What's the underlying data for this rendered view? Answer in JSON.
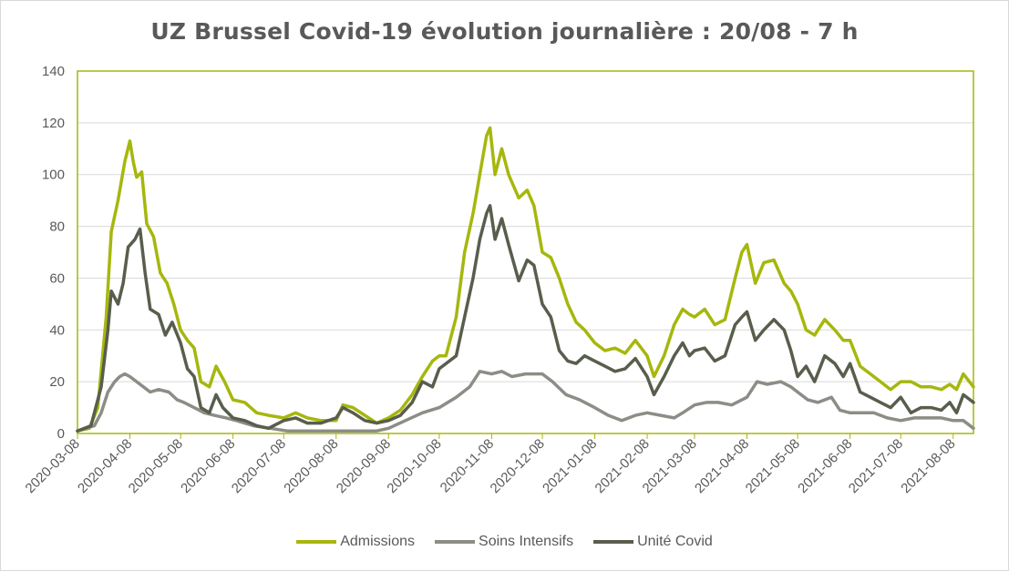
{
  "chart_data": {
    "type": "line",
    "title": "UZ Brussel Covid-19 évolution journalière : 20/08 - 7 h",
    "xlabel": "",
    "ylabel": "",
    "ylim": [
      0,
      140
    ],
    "yticks": [
      0,
      20,
      40,
      60,
      80,
      100,
      120,
      140
    ],
    "x_range": [
      "2020-03-08",
      "2021-08-20"
    ],
    "xticks": [
      "2020-03-08",
      "2020-04-08",
      "2020-05-08",
      "2020-06-08",
      "2020-07-08",
      "2020-08-08",
      "2020-09-08",
      "2020-10-08",
      "2020-11-08",
      "2020-12-08",
      "2021-01-08",
      "2021-02-08",
      "2021-03-08",
      "2021-04-08",
      "2021-05-08",
      "2021-06-08",
      "2021-07-08",
      "2021-08-08"
    ],
    "grid": true,
    "legend_position": "bottom",
    "series": [
      {
        "name": "Admissions",
        "color": "#a6b70d",
        "points": [
          [
            "2020-03-08",
            1
          ],
          [
            "2020-03-15",
            2
          ],
          [
            "2020-03-20",
            10
          ],
          [
            "2020-03-25",
            45
          ],
          [
            "2020-03-28",
            78
          ],
          [
            "2020-04-01",
            90
          ],
          [
            "2020-04-05",
            105
          ],
          [
            "2020-04-08",
            113
          ],
          [
            "2020-04-10",
            105
          ],
          [
            "2020-04-12",
            99
          ],
          [
            "2020-04-15",
            101
          ],
          [
            "2020-04-18",
            81
          ],
          [
            "2020-04-22",
            76
          ],
          [
            "2020-04-26",
            62
          ],
          [
            "2020-04-30",
            58
          ],
          [
            "2020-05-04",
            50
          ],
          [
            "2020-05-08",
            40
          ],
          [
            "2020-05-12",
            36
          ],
          [
            "2020-05-16",
            33
          ],
          [
            "2020-05-20",
            20
          ],
          [
            "2020-05-25",
            18
          ],
          [
            "2020-05-29",
            26
          ],
          [
            "2020-06-03",
            20
          ],
          [
            "2020-06-08",
            13
          ],
          [
            "2020-06-15",
            12
          ],
          [
            "2020-06-22",
            8
          ],
          [
            "2020-06-29",
            7
          ],
          [
            "2020-07-08",
            6
          ],
          [
            "2020-07-15",
            8
          ],
          [
            "2020-07-22",
            6
          ],
          [
            "2020-07-30",
            5
          ],
          [
            "2020-08-08",
            5
          ],
          [
            "2020-08-12",
            11
          ],
          [
            "2020-08-18",
            10
          ],
          [
            "2020-08-25",
            7
          ],
          [
            "2020-09-01",
            4
          ],
          [
            "2020-09-08",
            6
          ],
          [
            "2020-09-15",
            9
          ],
          [
            "2020-09-22",
            15
          ],
          [
            "2020-09-28",
            22
          ],
          [
            "2020-10-04",
            28
          ],
          [
            "2020-10-08",
            30
          ],
          [
            "2020-10-12",
            30
          ],
          [
            "2020-10-18",
            45
          ],
          [
            "2020-10-23",
            70
          ],
          [
            "2020-10-28",
            85
          ],
          [
            "2020-11-01",
            100
          ],
          [
            "2020-11-05",
            115
          ],
          [
            "2020-11-07",
            118
          ],
          [
            "2020-11-10",
            100
          ],
          [
            "2020-11-14",
            110
          ],
          [
            "2020-11-18",
            100
          ],
          [
            "2020-11-24",
            91
          ],
          [
            "2020-11-29",
            94
          ],
          [
            "2020-12-03",
            88
          ],
          [
            "2020-12-08",
            70
          ],
          [
            "2020-12-13",
            68
          ],
          [
            "2020-12-18",
            60
          ],
          [
            "2020-12-23",
            50
          ],
          [
            "2020-12-28",
            43
          ],
          [
            "2021-01-02",
            40
          ],
          [
            "2021-01-08",
            35
          ],
          [
            "2021-01-14",
            32
          ],
          [
            "2021-01-20",
            33
          ],
          [
            "2021-01-26",
            31
          ],
          [
            "2021-02-01",
            36
          ],
          [
            "2021-02-08",
            30
          ],
          [
            "2021-02-12",
            22
          ],
          [
            "2021-02-18",
            30
          ],
          [
            "2021-02-24",
            42
          ],
          [
            "2021-03-01",
            48
          ],
          [
            "2021-03-05",
            46
          ],
          [
            "2021-03-08",
            45
          ],
          [
            "2021-03-14",
            48
          ],
          [
            "2021-03-20",
            42
          ],
          [
            "2021-03-26",
            44
          ],
          [
            "2021-04-01",
            60
          ],
          [
            "2021-04-05",
            70
          ],
          [
            "2021-04-08",
            73
          ],
          [
            "2021-04-13",
            58
          ],
          [
            "2021-04-18",
            66
          ],
          [
            "2021-04-24",
            67
          ],
          [
            "2021-04-30",
            58
          ],
          [
            "2021-05-04",
            55
          ],
          [
            "2021-05-08",
            50
          ],
          [
            "2021-05-13",
            40
          ],
          [
            "2021-05-18",
            38
          ],
          [
            "2021-05-24",
            44
          ],
          [
            "2021-05-30",
            40
          ],
          [
            "2021-06-04",
            36
          ],
          [
            "2021-06-08",
            36
          ],
          [
            "2021-06-14",
            26
          ],
          [
            "2021-06-20",
            23
          ],
          [
            "2021-06-26",
            20
          ],
          [
            "2021-07-02",
            17
          ],
          [
            "2021-07-08",
            20
          ],
          [
            "2021-07-14",
            20
          ],
          [
            "2021-07-20",
            18
          ],
          [
            "2021-07-26",
            18
          ],
          [
            "2021-08-01",
            17
          ],
          [
            "2021-08-06",
            19
          ],
          [
            "2021-08-10",
            17
          ],
          [
            "2021-08-14",
            23
          ],
          [
            "2021-08-20",
            18
          ]
        ]
      },
      {
        "name": "Soins Intensifs",
        "color": "#8c8d86",
        "points": [
          [
            "2020-03-08",
            1
          ],
          [
            "2020-03-18",
            3
          ],
          [
            "2020-03-22",
            8
          ],
          [
            "2020-03-26",
            16
          ],
          [
            "2020-03-30",
            20
          ],
          [
            "2020-04-02",
            22
          ],
          [
            "2020-04-05",
            23
          ],
          [
            "2020-04-08",
            22
          ],
          [
            "2020-04-12",
            20
          ],
          [
            "2020-04-16",
            18
          ],
          [
            "2020-04-20",
            16
          ],
          [
            "2020-04-25",
            17
          ],
          [
            "2020-05-01",
            16
          ],
          [
            "2020-05-06",
            13
          ],
          [
            "2020-05-10",
            12
          ],
          [
            "2020-05-16",
            10
          ],
          [
            "2020-05-22",
            8
          ],
          [
            "2020-05-28",
            7
          ],
          [
            "2020-06-04",
            6
          ],
          [
            "2020-06-10",
            5
          ],
          [
            "2020-06-20",
            3
          ],
          [
            "2020-06-30",
            2
          ],
          [
            "2020-07-10",
            1
          ],
          [
            "2020-07-25",
            1
          ],
          [
            "2020-08-08",
            1
          ],
          [
            "2020-08-20",
            1
          ],
          [
            "2020-09-01",
            1
          ],
          [
            "2020-09-08",
            2
          ],
          [
            "2020-09-18",
            5
          ],
          [
            "2020-09-28",
            8
          ],
          [
            "2020-10-08",
            10
          ],
          [
            "2020-10-18",
            14
          ],
          [
            "2020-10-26",
            18
          ],
          [
            "2020-11-01",
            24
          ],
          [
            "2020-11-08",
            23
          ],
          [
            "2020-11-14",
            24
          ],
          [
            "2020-11-20",
            22
          ],
          [
            "2020-11-28",
            23
          ],
          [
            "2020-12-08",
            23
          ],
          [
            "2020-12-14",
            20
          ],
          [
            "2020-12-22",
            15
          ],
          [
            "2020-12-30",
            13
          ],
          [
            "2021-01-08",
            10
          ],
          [
            "2021-01-16",
            7
          ],
          [
            "2021-01-24",
            5
          ],
          [
            "2021-02-01",
            7
          ],
          [
            "2021-02-08",
            8
          ],
          [
            "2021-02-16",
            7
          ],
          [
            "2021-02-24",
            6
          ],
          [
            "2021-03-01",
            8
          ],
          [
            "2021-03-08",
            11
          ],
          [
            "2021-03-15",
            12
          ],
          [
            "2021-03-22",
            12
          ],
          [
            "2021-03-30",
            11
          ],
          [
            "2021-04-08",
            14
          ],
          [
            "2021-04-14",
            20
          ],
          [
            "2021-04-20",
            19
          ],
          [
            "2021-04-28",
            20
          ],
          [
            "2021-05-04",
            18
          ],
          [
            "2021-05-08",
            16
          ],
          [
            "2021-05-14",
            13
          ],
          [
            "2021-05-20",
            12
          ],
          [
            "2021-05-28",
            14
          ],
          [
            "2021-06-02",
            9
          ],
          [
            "2021-06-08",
            8
          ],
          [
            "2021-06-15",
            8
          ],
          [
            "2021-06-22",
            8
          ],
          [
            "2021-06-30",
            6
          ],
          [
            "2021-07-08",
            5
          ],
          [
            "2021-07-16",
            6
          ],
          [
            "2021-07-24",
            6
          ],
          [
            "2021-08-01",
            6
          ],
          [
            "2021-08-08",
            5
          ],
          [
            "2021-08-14",
            5
          ],
          [
            "2021-08-20",
            2
          ]
        ]
      },
      {
        "name": "Unité Covid",
        "color": "#585e4c",
        "points": [
          [
            "2020-03-08",
            1
          ],
          [
            "2020-03-16",
            3
          ],
          [
            "2020-03-22",
            18
          ],
          [
            "2020-03-26",
            40
          ],
          [
            "2020-03-28",
            55
          ],
          [
            "2020-04-01",
            50
          ],
          [
            "2020-04-04",
            58
          ],
          [
            "2020-04-07",
            72
          ],
          [
            "2020-04-11",
            75
          ],
          [
            "2020-04-14",
            79
          ],
          [
            "2020-04-17",
            62
          ],
          [
            "2020-04-20",
            48
          ],
          [
            "2020-04-25",
            46
          ],
          [
            "2020-04-29",
            38
          ],
          [
            "2020-05-03",
            43
          ],
          [
            "2020-05-08",
            35
          ],
          [
            "2020-05-12",
            25
          ],
          [
            "2020-05-16",
            22
          ],
          [
            "2020-05-20",
            10
          ],
          [
            "2020-05-25",
            8
          ],
          [
            "2020-05-29",
            15
          ],
          [
            "2020-06-02",
            10
          ],
          [
            "2020-06-08",
            6
          ],
          [
            "2020-06-15",
            5
          ],
          [
            "2020-06-22",
            3
          ],
          [
            "2020-06-29",
            2
          ],
          [
            "2020-07-08",
            5
          ],
          [
            "2020-07-15",
            6
          ],
          [
            "2020-07-22",
            4
          ],
          [
            "2020-07-30",
            4
          ],
          [
            "2020-08-08",
            6
          ],
          [
            "2020-08-12",
            10
          ],
          [
            "2020-08-18",
            8
          ],
          [
            "2020-08-25",
            5
          ],
          [
            "2020-09-01",
            4
          ],
          [
            "2020-09-08",
            5
          ],
          [
            "2020-09-15",
            7
          ],
          [
            "2020-09-22",
            12
          ],
          [
            "2020-09-28",
            20
          ],
          [
            "2020-10-04",
            18
          ],
          [
            "2020-10-08",
            25
          ],
          [
            "2020-10-12",
            27
          ],
          [
            "2020-10-18",
            30
          ],
          [
            "2020-10-23",
            45
          ],
          [
            "2020-10-28",
            60
          ],
          [
            "2020-11-01",
            75
          ],
          [
            "2020-11-05",
            85
          ],
          [
            "2020-11-07",
            88
          ],
          [
            "2020-11-10",
            75
          ],
          [
            "2020-11-14",
            83
          ],
          [
            "2020-11-18",
            73
          ],
          [
            "2020-11-24",
            59
          ],
          [
            "2020-11-29",
            67
          ],
          [
            "2020-12-03",
            65
          ],
          [
            "2020-12-08",
            50
          ],
          [
            "2020-12-13",
            45
          ],
          [
            "2020-12-18",
            32
          ],
          [
            "2020-12-23",
            28
          ],
          [
            "2020-12-28",
            27
          ],
          [
            "2021-01-02",
            30
          ],
          [
            "2021-01-08",
            28
          ],
          [
            "2021-01-14",
            26
          ],
          [
            "2021-01-20",
            24
          ],
          [
            "2021-01-26",
            25
          ],
          [
            "2021-02-01",
            29
          ],
          [
            "2021-02-08",
            22
          ],
          [
            "2021-02-12",
            15
          ],
          [
            "2021-02-18",
            22
          ],
          [
            "2021-02-24",
            30
          ],
          [
            "2021-03-01",
            35
          ],
          [
            "2021-03-05",
            30
          ],
          [
            "2021-03-08",
            32
          ],
          [
            "2021-03-14",
            33
          ],
          [
            "2021-03-20",
            28
          ],
          [
            "2021-03-26",
            30
          ],
          [
            "2021-04-01",
            42
          ],
          [
            "2021-04-05",
            45
          ],
          [
            "2021-04-08",
            47
          ],
          [
            "2021-04-13",
            36
          ],
          [
            "2021-04-18",
            40
          ],
          [
            "2021-04-24",
            44
          ],
          [
            "2021-04-30",
            40
          ],
          [
            "2021-05-04",
            32
          ],
          [
            "2021-05-08",
            22
          ],
          [
            "2021-05-13",
            26
          ],
          [
            "2021-05-18",
            20
          ],
          [
            "2021-05-24",
            30
          ],
          [
            "2021-05-30",
            27
          ],
          [
            "2021-06-04",
            22
          ],
          [
            "2021-06-08",
            27
          ],
          [
            "2021-06-14",
            16
          ],
          [
            "2021-06-20",
            14
          ],
          [
            "2021-06-26",
            12
          ],
          [
            "2021-07-02",
            10
          ],
          [
            "2021-07-08",
            14
          ],
          [
            "2021-07-14",
            8
          ],
          [
            "2021-07-20",
            10
          ],
          [
            "2021-07-26",
            10
          ],
          [
            "2021-08-01",
            9
          ],
          [
            "2021-08-06",
            12
          ],
          [
            "2021-08-10",
            8
          ],
          [
            "2021-08-14",
            15
          ],
          [
            "2021-08-20",
            12
          ]
        ]
      }
    ]
  }
}
